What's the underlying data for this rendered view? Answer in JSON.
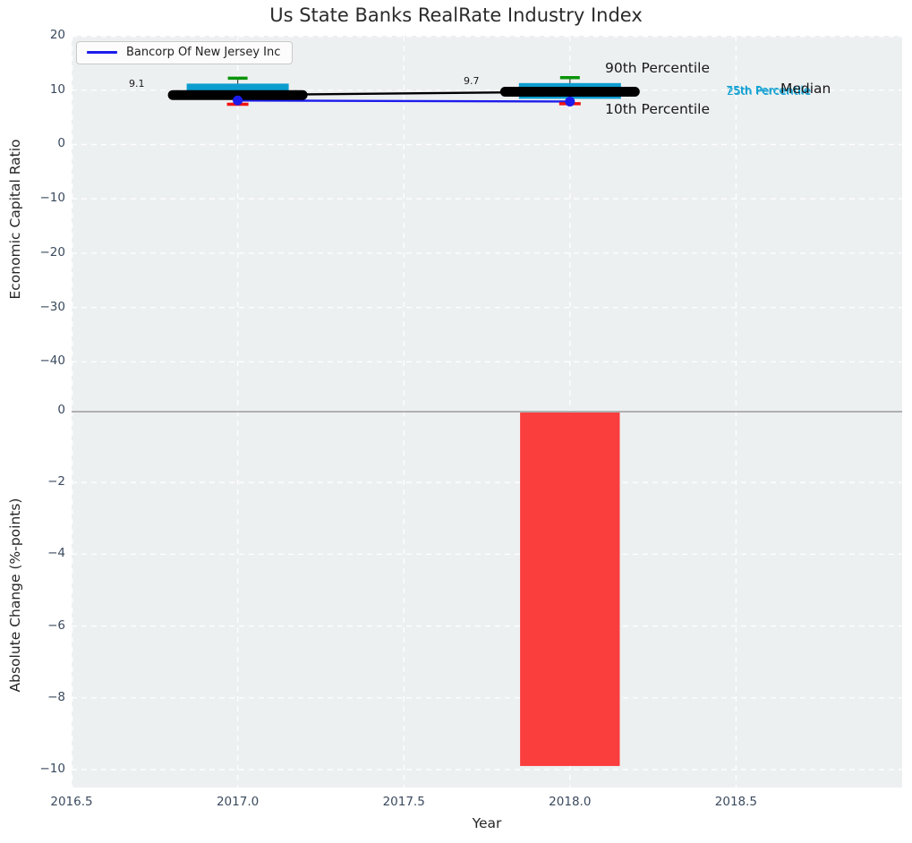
{
  "title": "Us State Banks RealRate Industry Index",
  "legend": {
    "label": "Bancorp Of New Jersey Inc"
  },
  "axes": {
    "xlabel": "Year",
    "top": {
      "ylabel": "Economic Capital Ratio"
    },
    "bottom": {
      "ylabel": "Absolute Change (%-points)"
    }
  },
  "annotations": {
    "p90": "90th Percentile",
    "p10": "10th Percentile",
    "median": "Median",
    "p75": "75th Percentile",
    "p25": "25th Percentile",
    "median_value_2017": "9.1",
    "median_value_2018": "9.7"
  },
  "colors": {
    "panel_bg": "#edf0f1",
    "grid": "#ffffff",
    "tick_label": "#3a4a5e",
    "box_fill": "#0c9dd0",
    "p90_cap": "#0a940a",
    "p10_cap": "#f21212",
    "median_line": "#000000",
    "company_line": "#1c1cec",
    "bar_fill": "#fa3d3d",
    "zero_line": "#b0b0b0",
    "percentile_text": "#15a2d2",
    "whisker_stem": "#444444",
    "legend_bg": "rgba(255,255,255,0.8)",
    "legend_border": "#c9c9c9"
  },
  "chart_data": [
    {
      "type": "box-line",
      "panel": "top",
      "title": "Us State Banks RealRate Industry Index",
      "ylabel": "Economic Capital Ratio",
      "x": [
        2017,
        2018
      ],
      "xlim": [
        2016.5,
        2019.0
      ],
      "ylim": [
        -49,
        20
      ],
      "yticks": [
        20,
        10,
        0,
        -10,
        -20,
        -30,
        -40
      ],
      "grid": true,
      "legend_position": "upper left",
      "series": [
        {
          "name": "90th Percentile",
          "values": [
            12.2,
            12.3
          ]
        },
        {
          "name": "75th Percentile",
          "values": [
            11.2,
            11.3
          ]
        },
        {
          "name": "Median",
          "values": [
            9.1,
            9.7
          ]
        },
        {
          "name": "25th Percentile",
          "values": [
            8.4,
            8.4
          ]
        },
        {
          "name": "Bancorp Of New Jersey Inc",
          "values": [
            8.1,
            7.9
          ]
        },
        {
          "name": "10th Percentile",
          "values": [
            7.4,
            7.5
          ]
        }
      ],
      "median_labels": [
        "9.1",
        "9.7"
      ]
    },
    {
      "type": "bar",
      "panel": "bottom",
      "ylabel": "Absolute Change (%-points)",
      "xlabel": "Year",
      "x": [
        2018
      ],
      "values": [
        -9.9
      ],
      "xlim": [
        2016.5,
        2019.0
      ],
      "ylim": [
        -10.5,
        0
      ],
      "yticks": [
        0,
        -2,
        -4,
        -6,
        -8,
        -10
      ],
      "xticks": [
        2016.5,
        2017.0,
        2017.5,
        2018.0,
        2018.5
      ],
      "bar_width_years": 0.3,
      "grid": true
    }
  ]
}
